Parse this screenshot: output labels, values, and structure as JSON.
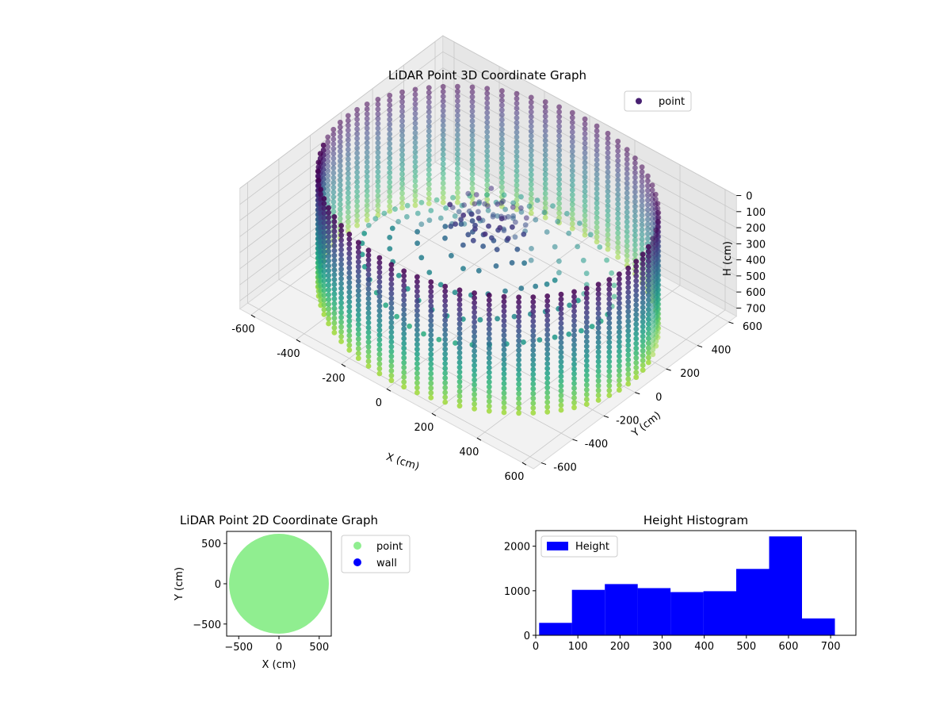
{
  "chart_data": [
    {
      "type": "scatter3d",
      "title": "LiDAR Point 3D Coordinate Graph",
      "xlabel": "X (cm)",
      "ylabel": "Y (cm)",
      "zlabel": "H (cm)",
      "xlim": [
        -650,
        650
      ],
      "ylim": [
        -650,
        650
      ],
      "zlim": [
        0,
        750
      ],
      "z_inverted": true,
      "x_ticks": [
        -600,
        -400,
        -200,
        0,
        200,
        400,
        600
      ],
      "y_ticks": [
        -600,
        -400,
        -200,
        0,
        200,
        400,
        600
      ],
      "z_ticks": [
        0,
        100,
        200,
        300,
        400,
        500,
        600,
        700
      ],
      "legend": [
        "point"
      ],
      "legend_position": "upper-right",
      "colormap": "viridis",
      "grid": true,
      "structure": {
        "wall_radius": 620,
        "wall_columns": 72,
        "wall_height_range": [
          0,
          720
        ],
        "inner_ring_radii": [
          160,
          260,
          360,
          460
        ],
        "center_peak_height": 80
      }
    },
    {
      "type": "scatter",
      "title": "LiDAR Point 2D Coordinate Graph",
      "xlabel": "X (cm)",
      "ylabel": "Y (cm)",
      "xlim": [
        -650,
        650
      ],
      "ylim": [
        -650,
        650
      ],
      "x_ticks": [
        -500,
        0,
        500
      ],
      "y_ticks": [
        -500,
        0,
        500
      ],
      "series": [
        {
          "name": "point",
          "color": "#90ee90",
          "shape": "filled-disk",
          "radius": 620
        },
        {
          "name": "wall",
          "color": "#0000ff",
          "points": []
        }
      ],
      "legend_position": "outside-right"
    },
    {
      "type": "histogram",
      "title": "Height Histogram",
      "xlim": [
        0,
        760
      ],
      "ylim": [
        0,
        2350
      ],
      "x_ticks": [
        0,
        100,
        200,
        300,
        400,
        500,
        600,
        700
      ],
      "y_ticks": [
        0,
        1000,
        2000
      ],
      "bin_edges": [
        8,
        86,
        164,
        242,
        320,
        398,
        476,
        554,
        632,
        710
      ],
      "counts": [
        280,
        1020,
        1150,
        1060,
        970,
        990,
        1490,
        2220,
        380
      ],
      "legend": [
        "Height"
      ],
      "legend_position": "upper-left",
      "color": "#0000ff"
    }
  ]
}
